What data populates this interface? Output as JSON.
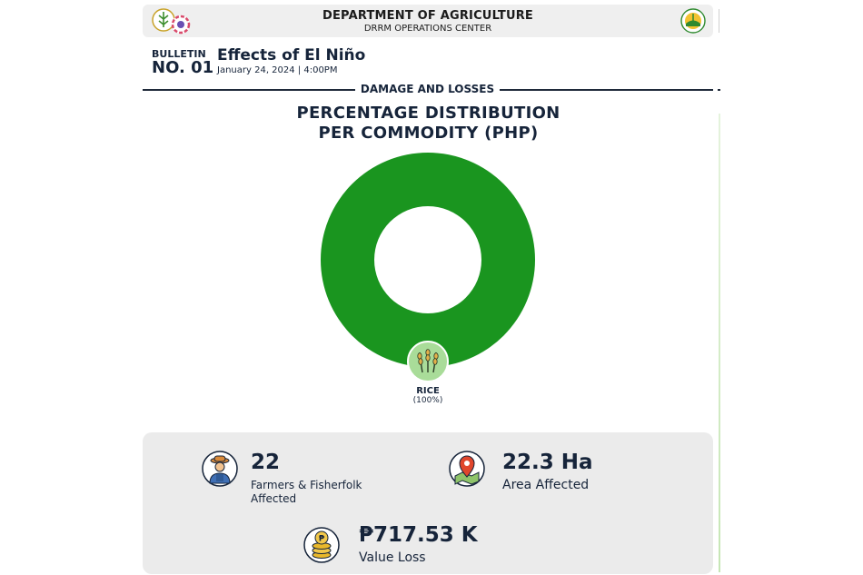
{
  "header": {
    "title": "DEPARTMENT OF AGRICULTURE",
    "subtitle": "DRRM OPERATIONS CENTER"
  },
  "bulletin": {
    "word": "BULLETIN",
    "number": "NO. 01",
    "title": "Effects of El Niño",
    "date": "January 24, 2024 | 4:00PM"
  },
  "section": {
    "label": "DAMAGE AND LOSSES"
  },
  "chart_data": {
    "type": "pie",
    "title": "PERCENTAGE DISTRIBUTION PER COMMODITY (PHP)",
    "title_lines": [
      "PERCENTAGE DISTRIBUTION",
      "PER COMMODITY (PHP)"
    ],
    "donut": true,
    "categories": [
      "RICE"
    ],
    "values": [
      100
    ],
    "labels": [
      "(100%)"
    ],
    "colors": [
      "#1a951f"
    ],
    "legend": "none",
    "icon": "rice-plant-icon"
  },
  "stats": {
    "farmers": {
      "value": "22",
      "label_line1": "Farmers & Fisherfolk",
      "label_line2": "Affected",
      "icon": "farmer-icon"
    },
    "area": {
      "value": "22.3 Ha",
      "label": "Area Affected",
      "icon": "map-pin-icon"
    },
    "value_loss": {
      "value": "₱717.53 K",
      "label": "Value Loss",
      "icon": "coins-icon"
    }
  },
  "colors": {
    "navy": "#16243a",
    "green": "#1a951f",
    "panel": "#ebebeb",
    "header_bg": "#efefef"
  }
}
